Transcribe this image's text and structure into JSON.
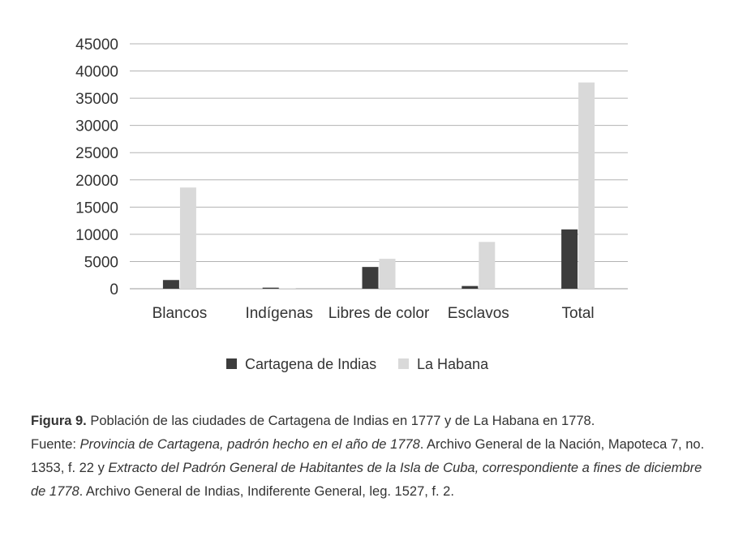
{
  "chart_data": {
    "type": "bar",
    "categories": [
      "Blancos",
      "Indígenas",
      "Libres de color",
      "Esclavos",
      "Total"
    ],
    "series": [
      {
        "name": "Cartagena de Indias",
        "values": [
          1600,
          200,
          4000,
          500,
          10900
        ],
        "color": "#3c3c3c"
      },
      {
        "name": "La Habana",
        "values": [
          18600,
          100,
          5500,
          8600,
          37900
        ],
        "color": "#d9d9d9"
      }
    ],
    "y_ticks": [
      "0",
      "5000",
      "10000",
      "15000",
      "20000",
      "25000",
      "30000",
      "35000",
      "40000",
      "45000"
    ],
    "ylim": [
      0,
      45000
    ],
    "grid": true,
    "legend_position": "bottom"
  },
  "caption": {
    "figure_label": "Figura 9.",
    "figure_text": " Población de las ciudades de Cartagena de Indias en 1777 y de La Habana en 1778.",
    "source_prefix": "Fuente: ",
    "source_title_1": "Provincia de Cartagena, padrón hecho en el año de 1778",
    "source_text_1": ". Archivo General de la Nación, Mapoteca 7, no. 1353, f. 22 y ",
    "source_title_2": "Extracto del Padrón General de Habitantes de la Isla de Cuba, correspondiente a fines de diciembre de 1778",
    "source_text_2": ". Archivo General de Indias, Indiferente General, leg. 1527, f. 2."
  }
}
